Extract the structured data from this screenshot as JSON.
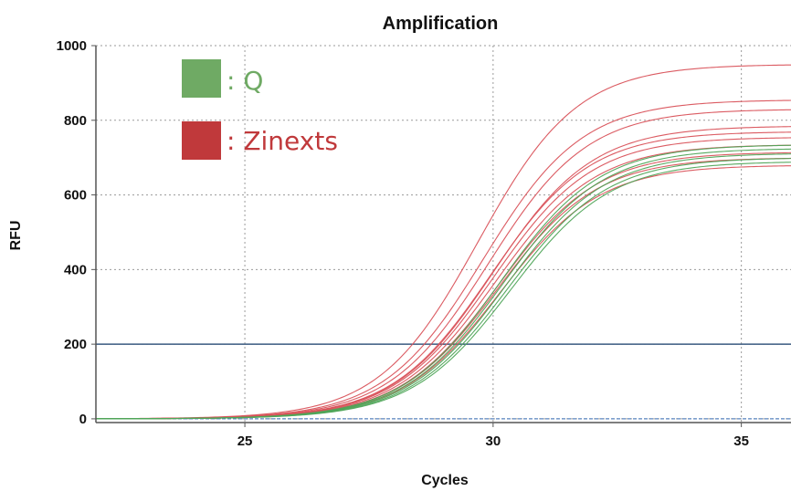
{
  "chart_data": {
    "type": "line",
    "title": "Amplification",
    "xlabel": "Cycles",
    "ylabel": "RFU",
    "xlim": [
      22,
      36
    ],
    "ylim": [
      -10,
      1000
    ],
    "x_ticks": [
      25,
      30,
      35
    ],
    "y_ticks": [
      0,
      200,
      400,
      600,
      800,
      1000
    ],
    "grid": true,
    "threshold": 200,
    "baseline": 0,
    "legend": [
      {
        "label": ": Q",
        "color": "#6faa64"
      },
      {
        "label": ": Zinexts",
        "color": "#c0393b"
      }
    ],
    "legend_position": "top-left",
    "colors": {
      "q": "#4fa558",
      "zinexts": "#d9525a",
      "threshold": "#3a5a80",
      "baseline": "#5a86c0"
    },
    "series_groups": [
      {
        "group": ": Zinexts",
        "curves": [
          {
            "midpoint": 29.7,
            "slope": 1.0,
            "plateau": 950
          },
          {
            "midpoint": 29.8,
            "slope": 1.0,
            "plateau": 855
          },
          {
            "midpoint": 29.9,
            "slope": 1.0,
            "plateau": 830
          },
          {
            "midpoint": 30.0,
            "slope": 1.0,
            "plateau": 785
          },
          {
            "midpoint": 29.95,
            "slope": 1.0,
            "plateau": 770
          },
          {
            "midpoint": 30.0,
            "slope": 1.0,
            "plateau": 755
          },
          {
            "midpoint": 30.05,
            "slope": 1.0,
            "plateau": 735
          },
          {
            "midpoint": 30.1,
            "slope": 1.0,
            "plateau": 715
          },
          {
            "midpoint": 30.1,
            "slope": 1.0,
            "plateau": 700
          },
          {
            "midpoint": 30.15,
            "slope": 1.0,
            "plateau": 680
          }
        ]
      },
      {
        "group": ": Q",
        "curves": [
          {
            "midpoint": 30.15,
            "slope": 1.0,
            "plateau": 735
          },
          {
            "midpoint": 30.2,
            "slope": 1.0,
            "plateau": 725
          },
          {
            "midpoint": 30.25,
            "slope": 1.0,
            "plateau": 712
          },
          {
            "midpoint": 30.3,
            "slope": 1.0,
            "plateau": 700
          },
          {
            "midpoint": 30.35,
            "slope": 1.0,
            "plateau": 690
          }
        ]
      }
    ]
  }
}
